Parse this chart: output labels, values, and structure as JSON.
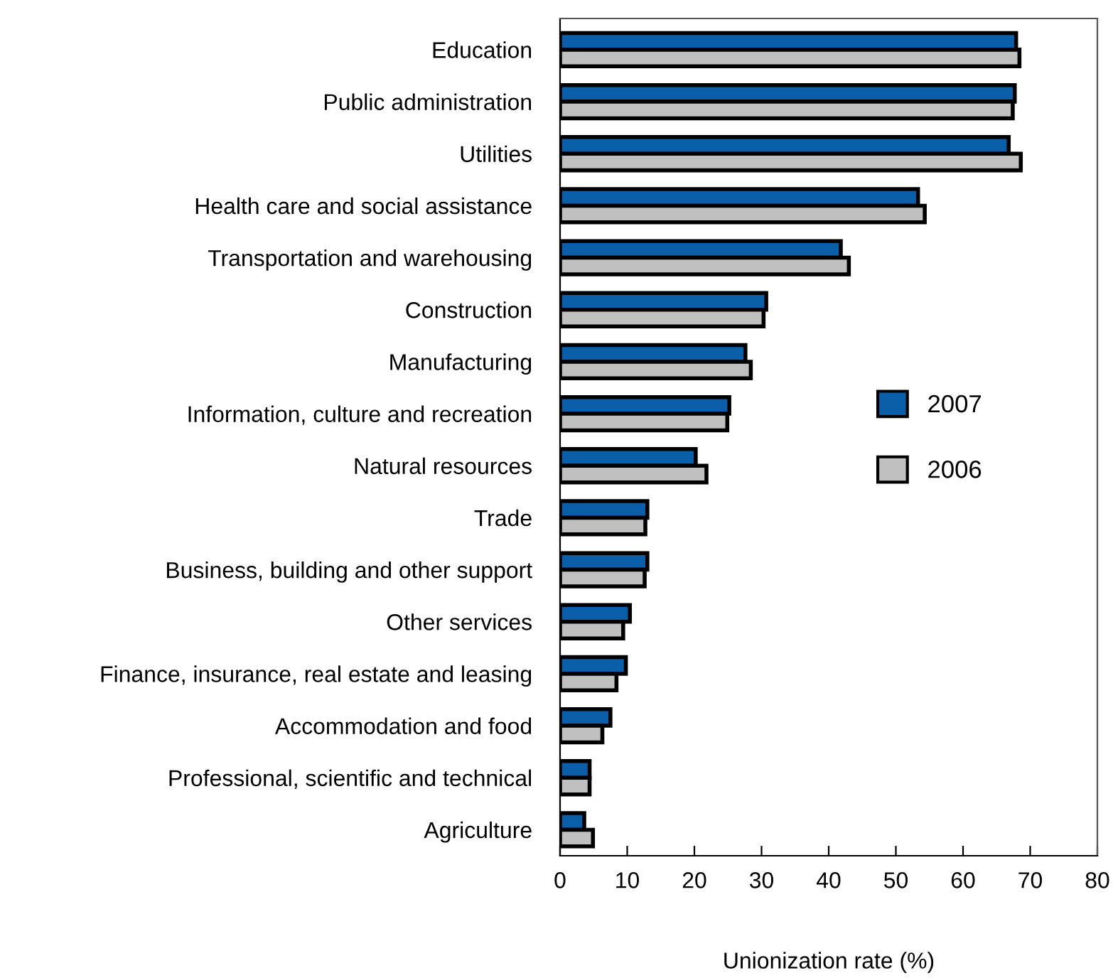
{
  "chart_data": {
    "type": "bar",
    "orientation": "horizontal",
    "xlabel": "Unionization rate (%)",
    "categories": [
      "Education",
      "Public administration",
      "Utilities",
      "Health care and social assistance",
      "Transportation and warehousing",
      "Construction",
      "Manufacturing",
      "Information, culture and recreation",
      "Natural resources",
      "Trade",
      "Business, building and other support",
      "Other services",
      "Finance, insurance, real estate and leasing",
      "Accommodation and food",
      "Professional, scientific and technical",
      "Agriculture"
    ],
    "series": [
      {
        "name": "2007",
        "color": "#0b5ea8",
        "values": [
          67.9,
          67.7,
          66.8,
          53.3,
          41.8,
          30.7,
          27.6,
          25.2,
          20.2,
          13.0,
          13.0,
          10.4,
          9.8,
          7.5,
          4.4,
          3.6
        ]
      },
      {
        "name": "2006",
        "color": "#c0c0c0",
        "values": [
          68.4,
          67.4,
          68.6,
          54.3,
          43.0,
          30.3,
          28.4,
          24.9,
          21.8,
          12.7,
          12.6,
          9.4,
          8.4,
          6.3,
          4.4,
          4.9
        ]
      }
    ],
    "xlim": [
      0,
      80
    ],
    "xticks": [
      0,
      10,
      20,
      30,
      40,
      50,
      60,
      70,
      80
    ],
    "grid": false,
    "legend": "right"
  }
}
